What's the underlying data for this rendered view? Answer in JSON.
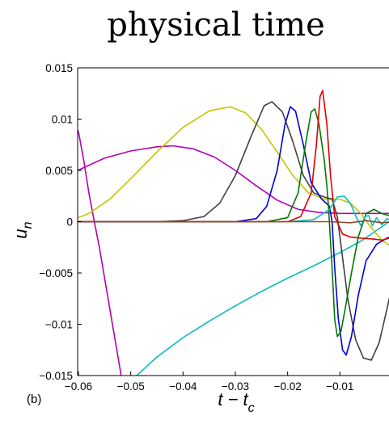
{
  "chart_data": {
    "type": "line",
    "title": "physical time",
    "xlabel": {
      "main": "t − t",
      "sub": "c"
    },
    "ylabel": {
      "main": "u",
      "sub": "n"
    },
    "panel_label": "(b)",
    "xlim": [
      -0.06,
      0.0
    ],
    "ylim": [
      -0.015,
      0.015
    ],
    "x_ticks": [
      {
        "value": -0.06,
        "label": "−0.06"
      },
      {
        "value": -0.05,
        "label": "−0.05"
      },
      {
        "value": -0.04,
        "label": "−0.04"
      },
      {
        "value": -0.03,
        "label": "−0.03"
      },
      {
        "value": -0.02,
        "label": "−0.02"
      },
      {
        "value": -0.01,
        "label": "−0.01"
      },
      {
        "value": 0.0,
        "label": "0"
      }
    ],
    "y_ticks": [
      {
        "value": 0.015,
        "label": "0.015"
      },
      {
        "value": 0.01,
        "label": "0.01"
      },
      {
        "value": 0.005,
        "label": "0.005"
      },
      {
        "value": 0.0,
        "label": "0"
      },
      {
        "value": -0.005,
        "label": "−0.005"
      },
      {
        "value": -0.01,
        "label": "−0.01"
      },
      {
        "value": -0.015,
        "label": "−0.015"
      }
    ],
    "grid": false,
    "series": [
      {
        "color": "#0bbcbc",
        "points": [
          [
            -0.0493,
            -0.0152
          ],
          [
            -0.045,
            -0.0132
          ],
          [
            -0.04,
            -0.0113
          ],
          [
            -0.035,
            -0.0097
          ],
          [
            -0.03,
            -0.0082
          ],
          [
            -0.025,
            -0.0068
          ],
          [
            -0.02,
            -0.0055
          ],
          [
            -0.015,
            -0.0043
          ],
          [
            -0.01,
            -0.003
          ],
          [
            -0.006,
            -0.0019
          ],
          [
            -0.004,
            -0.0012
          ],
          [
            -0.002,
            -0.0005
          ],
          [
            0.0,
            0.0002
          ]
        ]
      },
      {
        "color": "#b400b4",
        "points": [
          [
            -0.0615,
            0.0098
          ],
          [
            -0.06,
            0.0088
          ],
          [
            -0.059,
            0.006
          ],
          [
            -0.058,
            0.0028
          ],
          [
            -0.057,
            0.0001
          ],
          [
            -0.056,
            -0.0025
          ],
          [
            -0.055,
            -0.0055
          ],
          [
            -0.054,
            -0.0085
          ],
          [
            -0.053,
            -0.0115
          ],
          [
            -0.052,
            -0.0145
          ],
          [
            -0.0518,
            -0.0152
          ]
        ]
      },
      {
        "color": "#b400b4",
        "points": [
          [
            -0.061,
            0.0048
          ],
          [
            -0.055,
            0.0062
          ],
          [
            -0.05,
            0.0069
          ],
          [
            -0.045,
            0.0073
          ],
          [
            -0.042,
            0.0074
          ],
          [
            -0.038,
            0.0071
          ],
          [
            -0.034,
            0.0063
          ],
          [
            -0.03,
            0.005
          ],
          [
            -0.026,
            0.0035
          ],
          [
            -0.022,
            0.0021
          ],
          [
            -0.018,
            0.0012
          ],
          [
            -0.014,
            0.0009
          ],
          [
            -0.01,
            0.0008
          ],
          [
            -0.006,
            0.0008
          ],
          [
            0.0,
            0.0008
          ]
        ]
      },
      {
        "color": "#c4c400",
        "points": [
          [
            -0.061,
            0.0002
          ],
          [
            -0.058,
            0.0008
          ],
          [
            -0.054,
            0.0022
          ],
          [
            -0.05,
            0.0042
          ],
          [
            -0.045,
            0.0068
          ],
          [
            -0.04,
            0.0092
          ],
          [
            -0.035,
            0.0108
          ],
          [
            -0.031,
            0.0112
          ],
          [
            -0.028,
            0.0106
          ],
          [
            -0.025,
            0.009
          ],
          [
            -0.022,
            0.0068
          ],
          [
            -0.019,
            0.0045
          ],
          [
            -0.016,
            0.0028
          ],
          [
            -0.013,
            0.0022
          ],
          [
            -0.01,
            0.0022
          ],
          [
            -0.008,
            0.0018
          ],
          [
            -0.006,
            0.0008
          ],
          [
            -0.004,
            -0.0006
          ],
          [
            -0.002,
            -0.0018
          ],
          [
            0.0,
            -0.0025
          ]
        ]
      },
      {
        "color": "#404040",
        "points": [
          [
            -0.061,
            0.0
          ],
          [
            -0.045,
            0.0
          ],
          [
            -0.04,
            0.0001
          ],
          [
            -0.036,
            0.0005
          ],
          [
            -0.033,
            0.0018
          ],
          [
            -0.03,
            0.0045
          ],
          [
            -0.027,
            0.0083
          ],
          [
            -0.0245,
            0.0113
          ],
          [
            -0.023,
            0.0117
          ],
          [
            -0.021,
            0.0107
          ],
          [
            -0.019,
            0.0078
          ],
          [
            -0.017,
            0.0045
          ],
          [
            -0.015,
            0.0028
          ],
          [
            -0.013,
            0.0024
          ],
          [
            -0.0115,
            0.0022
          ],
          [
            -0.0105,
            0.0005
          ],
          [
            -0.0095,
            -0.0035
          ],
          [
            -0.0085,
            -0.0075
          ],
          [
            -0.007,
            -0.0115
          ],
          [
            -0.0055,
            -0.0133
          ],
          [
            -0.004,
            -0.0135
          ],
          [
            -0.0025,
            -0.0118
          ],
          [
            -0.001,
            -0.0085
          ],
          [
            0.0,
            -0.0062
          ]
        ]
      },
      {
        "color": "#0000e0",
        "points": [
          [
            -0.061,
            0.0
          ],
          [
            -0.03,
            0.0
          ],
          [
            -0.026,
            0.0003
          ],
          [
            -0.024,
            0.0015
          ],
          [
            -0.022,
            0.005
          ],
          [
            -0.0205,
            0.0095
          ],
          [
            -0.0195,
            0.0112
          ],
          [
            -0.0185,
            0.0108
          ],
          [
            -0.017,
            0.0075
          ],
          [
            -0.0155,
            0.0038
          ],
          [
            -0.0135,
            0.0022
          ],
          [
            -0.012,
            0.0015
          ],
          [
            -0.0115,
            0.0
          ],
          [
            -0.011,
            -0.0045
          ],
          [
            -0.0103,
            -0.0095
          ],
          [
            -0.0095,
            -0.0125
          ],
          [
            -0.0088,
            -0.013
          ],
          [
            -0.0078,
            -0.0112
          ],
          [
            -0.0065,
            -0.0072
          ],
          [
            -0.005,
            -0.0038
          ],
          [
            -0.003,
            -0.0022
          ],
          [
            -0.001,
            -0.0016
          ],
          [
            0.0,
            -0.0014
          ]
        ]
      },
      {
        "color": "#007a00",
        "points": [
          [
            -0.061,
            0.0
          ],
          [
            -0.024,
            0.0
          ],
          [
            -0.02,
            0.0004
          ],
          [
            -0.018,
            0.0028
          ],
          [
            -0.0165,
            0.0078
          ],
          [
            -0.0155,
            0.0107
          ],
          [
            -0.0148,
            0.011
          ],
          [
            -0.014,
            0.0095
          ],
          [
            -0.013,
            0.006
          ],
          [
            -0.0125,
            0.0035
          ],
          [
            -0.0122,
            0.0015
          ],
          [
            -0.012,
            -0.0002
          ],
          [
            -0.0115,
            -0.0045
          ],
          [
            -0.011,
            -0.0095
          ],
          [
            -0.0105,
            -0.0112
          ],
          [
            -0.0098,
            -0.0107
          ],
          [
            -0.009,
            -0.0085
          ],
          [
            -0.0078,
            -0.005
          ],
          [
            -0.0065,
            -0.0015
          ],
          [
            -0.005,
            0.0008
          ],
          [
            -0.0035,
            0.0012
          ],
          [
            -0.002,
            0.0008
          ],
          [
            0.0,
            0.0005
          ]
        ]
      },
      {
        "color": "#e00000",
        "points": [
          [
            -0.061,
            0.0
          ],
          [
            -0.02,
            0.0
          ],
          [
            -0.0175,
            0.0005
          ],
          [
            -0.0155,
            0.0028
          ],
          [
            -0.0145,
            0.0075
          ],
          [
            -0.0138,
            0.0122
          ],
          [
            -0.0133,
            0.0128
          ],
          [
            -0.0125,
            0.0095
          ],
          [
            -0.0118,
            0.0045
          ],
          [
            -0.011,
            0.0005
          ],
          [
            -0.0095,
            -0.0012
          ],
          [
            -0.008,
            -0.0015
          ],
          [
            -0.006,
            -0.0016
          ],
          [
            -0.0035,
            -0.0017
          ],
          [
            -0.002,
            -0.0018
          ],
          [
            -0.0005,
            -0.0016
          ],
          [
            0.0,
            -0.0014
          ]
        ]
      },
      {
        "color": "#0bbcbc",
        "points": [
          [
            -0.02,
            0.0
          ],
          [
            -0.015,
            0.0002
          ],
          [
            -0.012,
            0.0012
          ],
          [
            -0.0105,
            0.0024
          ],
          [
            -0.0092,
            0.0025
          ],
          [
            -0.008,
            0.0018
          ],
          [
            -0.007,
            0.0006
          ],
          [
            -0.006,
            -0.0004
          ],
          [
            -0.0052,
            0.0005
          ],
          [
            -0.0045,
            0.0006
          ],
          [
            -0.0038,
            -0.0004
          ],
          [
            -0.003,
            0.0004
          ],
          [
            -0.002,
            -0.0003
          ],
          [
            -0.001,
            0.0003
          ],
          [
            0.0,
            0.0
          ]
        ]
      },
      {
        "color": "#8b4a2a",
        "points": [
          [
            -0.061,
            0.0
          ],
          [
            -0.02,
            0.0
          ],
          [
            -0.012,
            0.0
          ],
          [
            -0.008,
            -0.0001
          ],
          [
            -0.005,
            0.0001
          ],
          [
            -0.002,
            -0.0001
          ],
          [
            0.0,
            0.0
          ]
        ]
      }
    ]
  }
}
